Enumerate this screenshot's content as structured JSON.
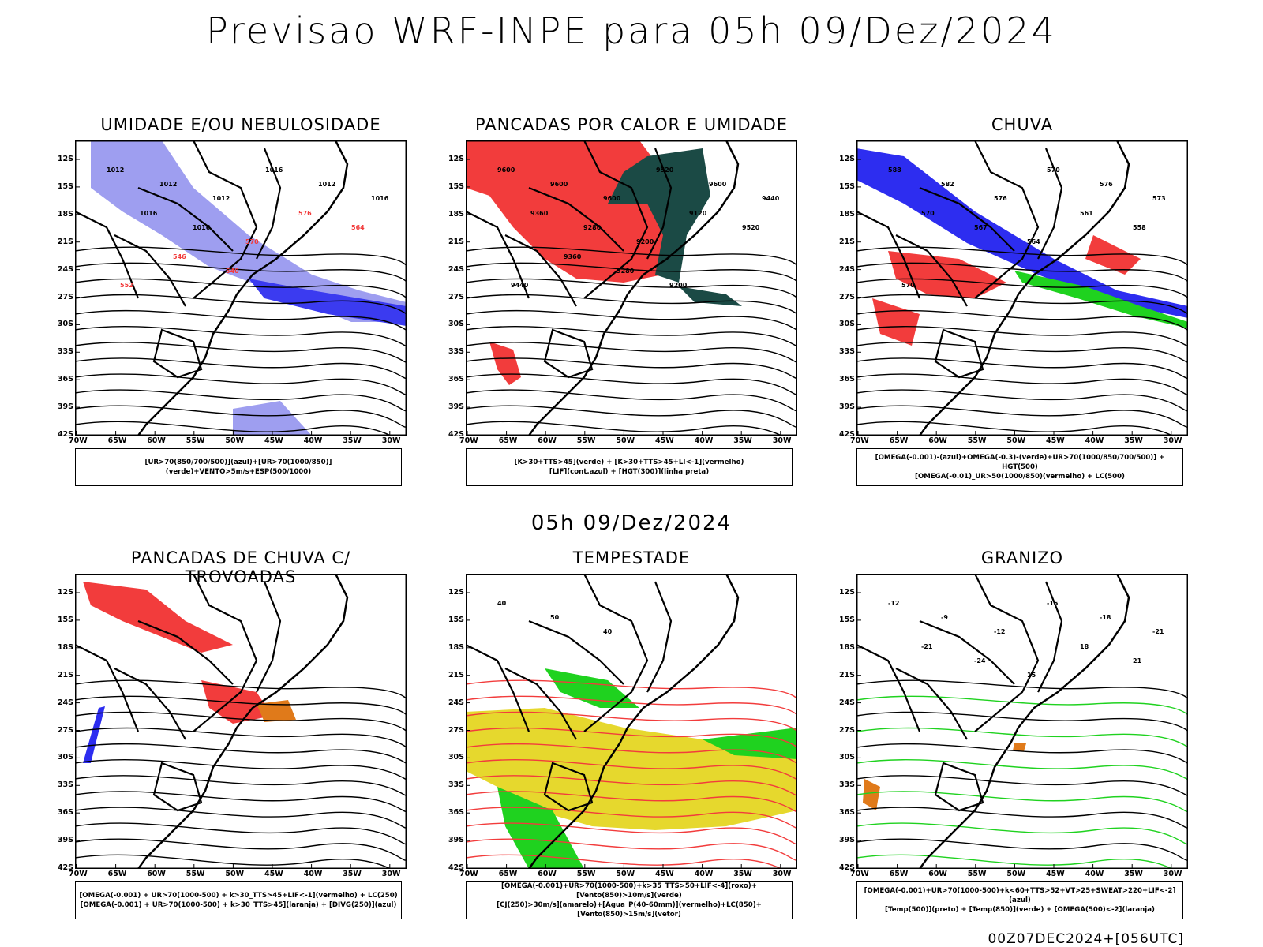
{
  "header": {
    "title": "Previsao WRF-INPE  para 05h 09/Dez/2024",
    "subtitle": "05h 09/Dez/2024",
    "timestamp": "00Z07DEC2024+[056UTC]"
  },
  "axes": {
    "lat_labels": [
      "12S",
      "15S",
      "18S",
      "21S",
      "24S",
      "27S",
      "30S",
      "33S",
      "36S",
      "39S",
      "42S"
    ],
    "lon_labels": [
      "70W",
      "65W",
      "60W",
      "55W",
      "50W",
      "45W",
      "40W",
      "35W",
      "30W"
    ]
  },
  "panels": [
    {
      "title": "UMIDADE E/OU NEBULOSIDADE",
      "legend": [
        "[UR>70(850/700/500)](azul)+[UR>70(1000/850)](verde)+VENTO>5m/s+ESP(500/1000)"
      ],
      "labels": [
        "1012",
        "1012",
        "1012",
        "1016",
        "1012",
        "1016",
        "1016",
        "1016",
        "570",
        "576",
        "564",
        "552",
        "546",
        "540"
      ]
    },
    {
      "title": "PANCADAS POR CALOR E UMIDADE",
      "legend": [
        "[K>30+TTS>45](verde) + [K>30+TTS>45+LI<-1](vermelho)",
        "[LIF](cont.azul) + [HGT(300)](linha preta)"
      ],
      "labels": [
        "9600",
        "9600",
        "9600",
        "9520",
        "9600",
        "9440",
        "9360",
        "9280",
        "9200",
        "9120",
        "9520",
        "9440",
        "9360",
        "9280",
        "9200"
      ]
    },
    {
      "title": "CHUVA",
      "legend": [
        "[OMEGA(-0.001)-(azul)+OMEGA(-0.3)-(verde)+UR>70(1000/850/700/500)] + HGT(500)",
        "[OMEGA(-0.01)_UR>50(1000/850)(vermelho) + LC(500)"
      ],
      "labels": [
        "588",
        "582",
        "576",
        "570",
        "576",
        "573",
        "570",
        "567",
        "564",
        "561",
        "558",
        "570"
      ]
    },
    {
      "title": "PANCADAS DE CHUVA C/ TROVOADAS",
      "legend": [
        "[OMEGA(-0.001) + UR>70(1000-500) + k>30_TTS>45+LIF<-1](vermelho) + LC(250)",
        "[OMEGA(-0.001) + UR>70(1000-500) + k>30_TTS>45](laranja) + [DIVG(250)](azul)"
      ],
      "labels": []
    },
    {
      "title": "TEMPESTADE",
      "legend": [
        "[OMEGA(-0.001)+UR>70(1000-500)+k>35_TTS>50+LIF<-4](roxo)+[Vento(850)>10m/s](verde)",
        "[CJ(250)>30m/s](amarelo)+[Agua_P(40-60mm)](vermelho)+LC(850)+[Vento(850)>15m/s](vetor)"
      ],
      "labels": [
        "40",
        "50",
        "40"
      ]
    },
    {
      "title": "GRANIZO",
      "legend": [
        "[OMEGA(-0.001)+UR>70(1000-500)+k<60+TTS>52+VT>25+SWEAT>220+LIF<-2](azul)",
        "[Temp(500)](preto) + [Temp(850)](verde) + [OMEGA(500)<-2](laranja)"
      ],
      "labels": [
        "-12",
        "-9",
        "-12",
        "-15",
        "-18",
        "-21",
        "-21",
        "-24",
        "15",
        "18",
        "21"
      ]
    }
  ],
  "colors": {
    "red": "#f23c3c",
    "blue": "#2d2df0",
    "lightblue": "#9e9ef0",
    "green": "#1fd21f",
    "darkgreen": "#1b4a45",
    "yellow": "#e6d82d",
    "orange": "#e07a1a",
    "black": "#000000"
  }
}
